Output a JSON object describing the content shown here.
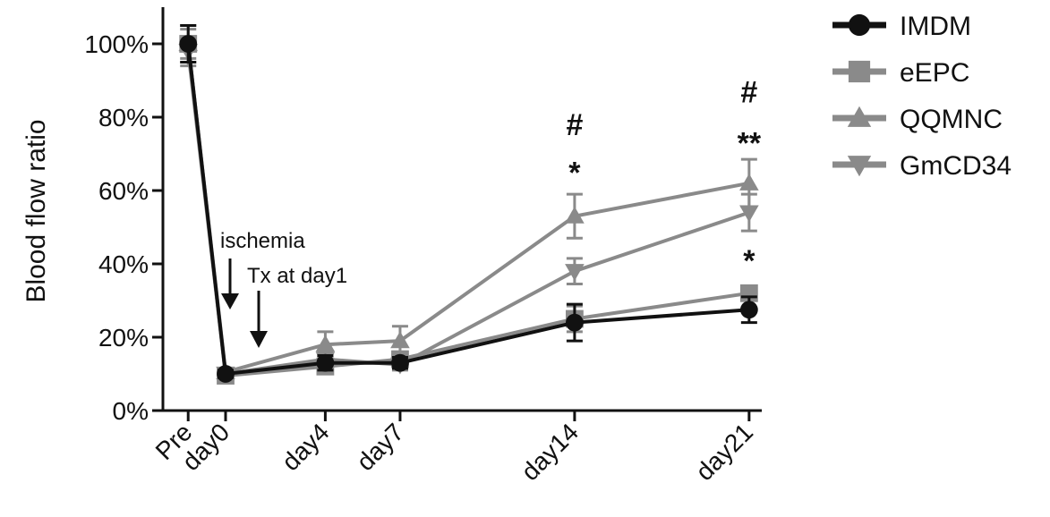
{
  "chart_data": {
    "type": "line",
    "ylabel": "Blood flow ratio",
    "xlabel": "",
    "categories": [
      "Pre",
      "day0",
      "day4",
      "day7",
      "day14",
      "day21"
    ],
    "x_positions": [
      -1.5,
      0,
      4,
      7,
      14,
      21
    ],
    "ylim": [
      0,
      100
    ],
    "y_ticks": [
      0,
      20,
      40,
      60,
      80,
      100
    ],
    "y_tick_labels": [
      "0%",
      "20%",
      "40%",
      "60%",
      "80%",
      "100%"
    ],
    "grid": false,
    "legend_position": "right",
    "series": [
      {
        "name": "IMDM",
        "marker": "circle",
        "color": "#111111",
        "values": [
          100,
          10,
          13,
          13,
          24,
          27.5
        ],
        "err": [
          5,
          1,
          2,
          1.5,
          5,
          3.5
        ]
      },
      {
        "name": "eEPC",
        "marker": "square",
        "color": "#8a8a8a",
        "values": [
          100,
          9.5,
          12,
          14,
          25,
          32
        ],
        "err": [
          5,
          1,
          2,
          2,
          3.5,
          2
        ]
      },
      {
        "name": "QQMNC",
        "marker": "triangle-up",
        "color": "#8a8a8a",
        "values": [
          100,
          10.5,
          18,
          19,
          53,
          62
        ],
        "err": [
          4,
          1,
          3.5,
          4,
          6,
          6.5
        ]
      },
      {
        "name": "GmCD34",
        "marker": "triangle-down",
        "color": "#8a8a8a",
        "values": [
          98,
          10,
          14,
          12.5,
          38,
          54
        ],
        "err": [
          4,
          1,
          2,
          1.5,
          3.5,
          5
        ]
      }
    ],
    "annotations": [
      {
        "text": "ischemia",
        "arrow_at": "day0"
      },
      {
        "text": "Tx at day1",
        "arrow_at": "day1"
      }
    ],
    "significance": [
      {
        "text": "#",
        "category": "day14",
        "y": 78
      },
      {
        "text": "*",
        "category": "day14",
        "y": 65
      },
      {
        "text": "#",
        "category": "day21",
        "y": 87
      },
      {
        "text": "**",
        "category": "day21",
        "y": 73
      },
      {
        "text": "*",
        "category": "day21",
        "y": 41
      }
    ]
  }
}
